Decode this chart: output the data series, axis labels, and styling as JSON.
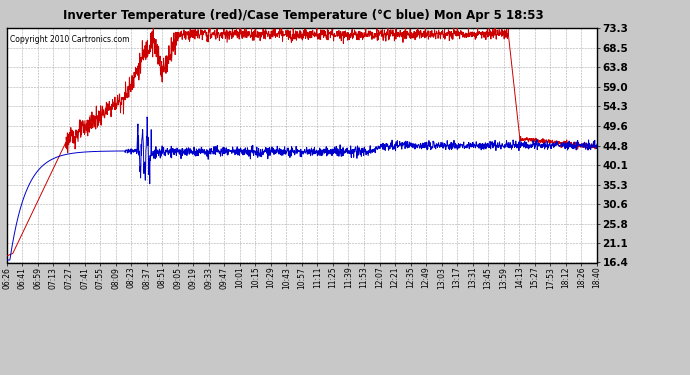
{
  "title": "Inverter Temperature (red)/Case Temperature (°C blue) Mon Apr 5 18:53",
  "copyright": "Copyright 2010 Cartronics.com",
  "yticks": [
    16.4,
    21.1,
    25.8,
    30.6,
    35.3,
    40.1,
    44.8,
    49.6,
    54.3,
    59.0,
    63.8,
    68.5,
    73.3
  ],
  "ymin": 16.4,
  "ymax": 73.3,
  "bg_color": "#c8c8c8",
  "plot_bg": "#ffffff",
  "red_color": "#cc0000",
  "blue_color": "#0000cc",
  "xtick_labels": [
    "06:26",
    "06:41",
    "06:59",
    "07:13",
    "07:27",
    "07:41",
    "07:55",
    "08:09",
    "08:23",
    "08:37",
    "08:51",
    "09:05",
    "09:19",
    "09:33",
    "09:47",
    "10:01",
    "10:15",
    "10:29",
    "10:43",
    "10:57",
    "11:11",
    "11:25",
    "11:39",
    "11:53",
    "12:07",
    "12:21",
    "12:35",
    "12:49",
    "13:03",
    "13:17",
    "13:31",
    "13:45",
    "13:59",
    "14:13",
    "15:27",
    "17:53",
    "18:12",
    "18:26",
    "18:40"
  ],
  "n_points": 2000
}
